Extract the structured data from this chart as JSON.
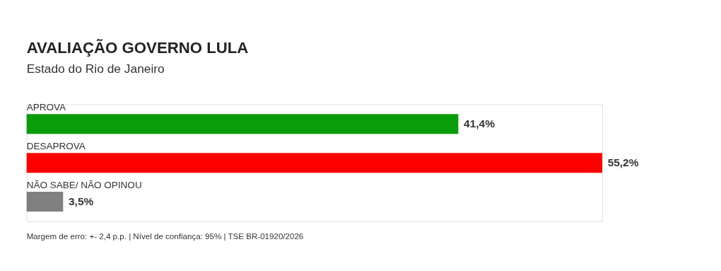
{
  "chart_data": {
    "type": "bar",
    "orientation": "horizontal",
    "title": "AVALIAÇÃO GOVERNO LULA",
    "subtitle": "Estado do Rio de Janeiro",
    "categories": [
      "APROVA",
      "DESAPROVA",
      "NÃO SABE/ NÃO OPINOU"
    ],
    "values": [
      41.4,
      55.2,
      3.5
    ],
    "colors": [
      "#0a9c0a",
      "#ff0000",
      "#808080"
    ],
    "value_labels": [
      "41,4%",
      "55,2%",
      "3,5%"
    ],
    "annotations": [
      "Margem de erro: +- 2,4 p.p. | Nível de confiança: 95% | TSE BR-01920/2026"
    ]
  }
}
